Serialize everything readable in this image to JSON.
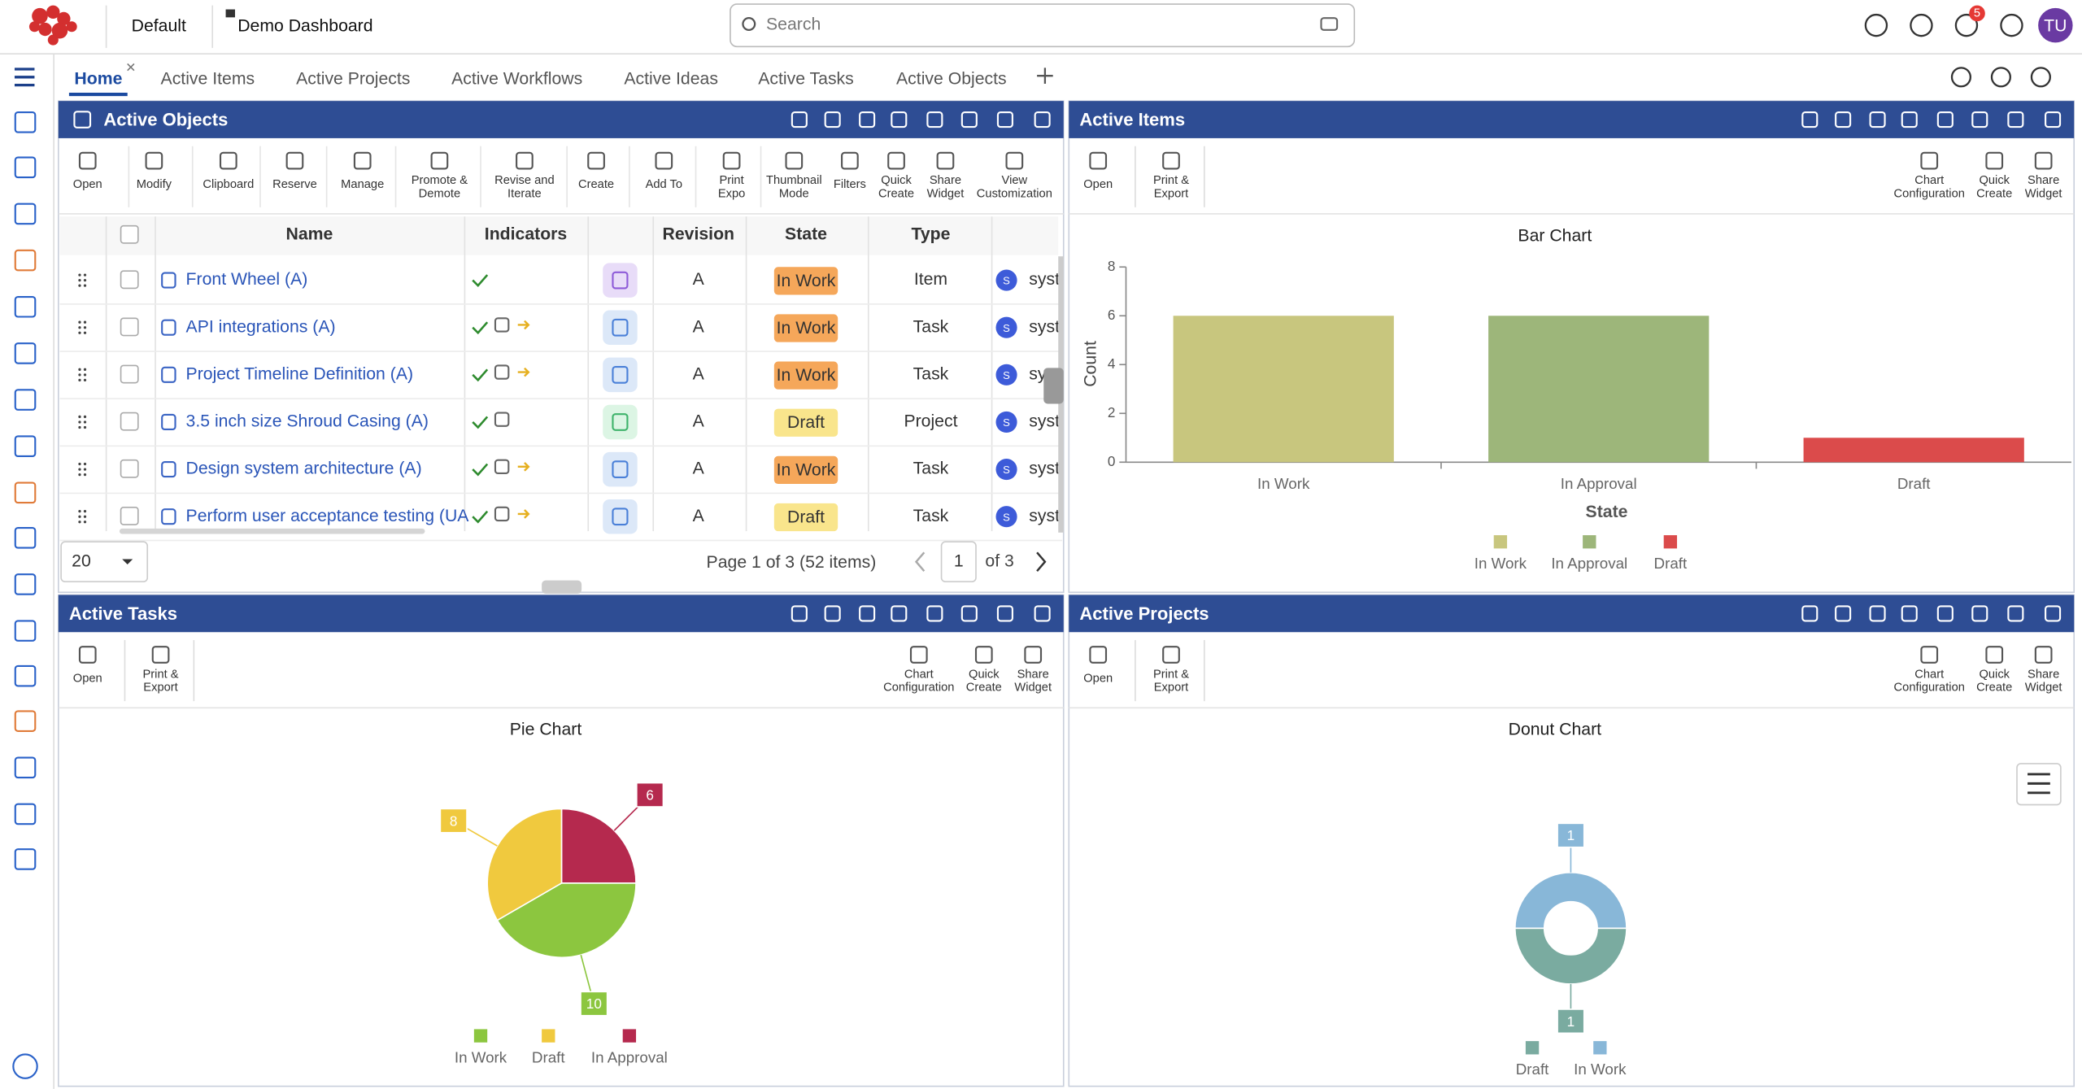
{
  "header": {
    "workspace": "Default",
    "dashboard": "Demo Dashboard",
    "search_placeholder": "Search",
    "notifications": "5",
    "avatar": "TU"
  },
  "tabs": [
    "Home",
    "Active Items",
    "Active Projects",
    "Active Workflows",
    "Active Ideas",
    "Active Tasks",
    "Active Objects"
  ],
  "widgets": [
    {
      "title": "Active Objects",
      "toolbar": [
        [
          "Open"
        ],
        [
          "Modify"
        ],
        [
          "Clipboard"
        ],
        [
          "Reserve"
        ],
        [
          "Manage"
        ],
        [
          "Promote &",
          "Demote"
        ],
        [
          "Revise and",
          "Iterate"
        ],
        [
          "Create"
        ],
        [
          "Add To"
        ],
        [
          "Print",
          "Expo"
        ],
        [
          "Thumbnail",
          "Mode"
        ],
        [
          "Filters"
        ],
        [
          "Quick",
          "Create"
        ],
        [
          "Share",
          "Widget"
        ],
        [
          "View",
          "Customization"
        ]
      ]
    },
    {
      "title": "Active Items",
      "toolbar": [
        [
          "Open"
        ],
        [
          "Print &",
          "Export"
        ],
        [
          "Chart",
          "Configuration"
        ],
        [
          "Quick",
          "Create"
        ],
        [
          "Share",
          "Widget"
        ]
      ]
    },
    {
      "title": "Active Tasks",
      "toolbar": [
        [
          "Open"
        ],
        [
          "Print &",
          "Export"
        ],
        [
          "Chart",
          "Configuration"
        ],
        [
          "Quick",
          "Create"
        ],
        [
          "Share",
          "Widget"
        ]
      ]
    },
    {
      "title": "Active Projects",
      "toolbar": [
        [
          "Open"
        ],
        [
          "Print &",
          "Export"
        ],
        [
          "Chart",
          "Configuration"
        ],
        [
          "Quick",
          "Create"
        ],
        [
          "Share",
          "Widget"
        ]
      ]
    }
  ],
  "table": {
    "columns": [
      "Name",
      "Indicators",
      "Revision",
      "State",
      "Type"
    ],
    "rows": [
      {
        "name": "Front Wheel (A)",
        "revision": "A",
        "state": "In Work",
        "type": "Item",
        "owner_initial": "S",
        "owner": "syst"
      },
      {
        "name": "API integrations (A)",
        "revision": "A",
        "state": "In Work",
        "type": "Task",
        "owner_initial": "S",
        "owner": "syst"
      },
      {
        "name": "Project Timeline Definition (A)",
        "revision": "A",
        "state": "In Work",
        "type": "Task",
        "owner_initial": "S",
        "owner": "syst"
      },
      {
        "name": "3.5 inch size Shroud Casing (A)",
        "revision": "A",
        "state": "Draft",
        "type": "Project",
        "owner_initial": "S",
        "owner": "syst"
      },
      {
        "name": "Design system architecture (A)",
        "revision": "A",
        "state": "In Work",
        "type": "Task",
        "owner_initial": "S",
        "owner": "syst"
      },
      {
        "name": "Perform user acceptance testing (UA",
        "revision": "A",
        "state": "Draft",
        "type": "Task",
        "owner_initial": "S",
        "owner": "syst"
      }
    ]
  },
  "pagination": {
    "page_size": "20",
    "summary": "Page 1 of 3 (52 items)",
    "page": "1",
    "of": "of 3"
  },
  "chart_data": [
    {
      "type": "bar",
      "title": "Bar Chart",
      "x_label": "State",
      "y_label": "Count",
      "categories": [
        "In Work",
        "In Approval",
        "Draft"
      ],
      "values": [
        6,
        6,
        1
      ],
      "colors": [
        "#c8c67e",
        "#9db67a",
        "#db4b4b"
      ],
      "ylim": [
        0,
        8
      ],
      "yticks": [
        0,
        2,
        4,
        6,
        8
      ],
      "legend": "bottom"
    },
    {
      "type": "pie",
      "title": "Pie Chart",
      "categories": [
        "In Work",
        "Draft",
        "In Approval"
      ],
      "values": [
        10,
        8,
        6
      ],
      "colors": [
        "#8cc63f",
        "#f0c93e",
        "#b5294e"
      ],
      "legend": "bottom"
    },
    {
      "type": "donut",
      "title": "Donut Chart",
      "categories": [
        "Draft",
        "In Work"
      ],
      "values": [
        1,
        1
      ],
      "colors": [
        "#7aaba0",
        "#88b7d8"
      ],
      "legend": "bottom"
    }
  ]
}
